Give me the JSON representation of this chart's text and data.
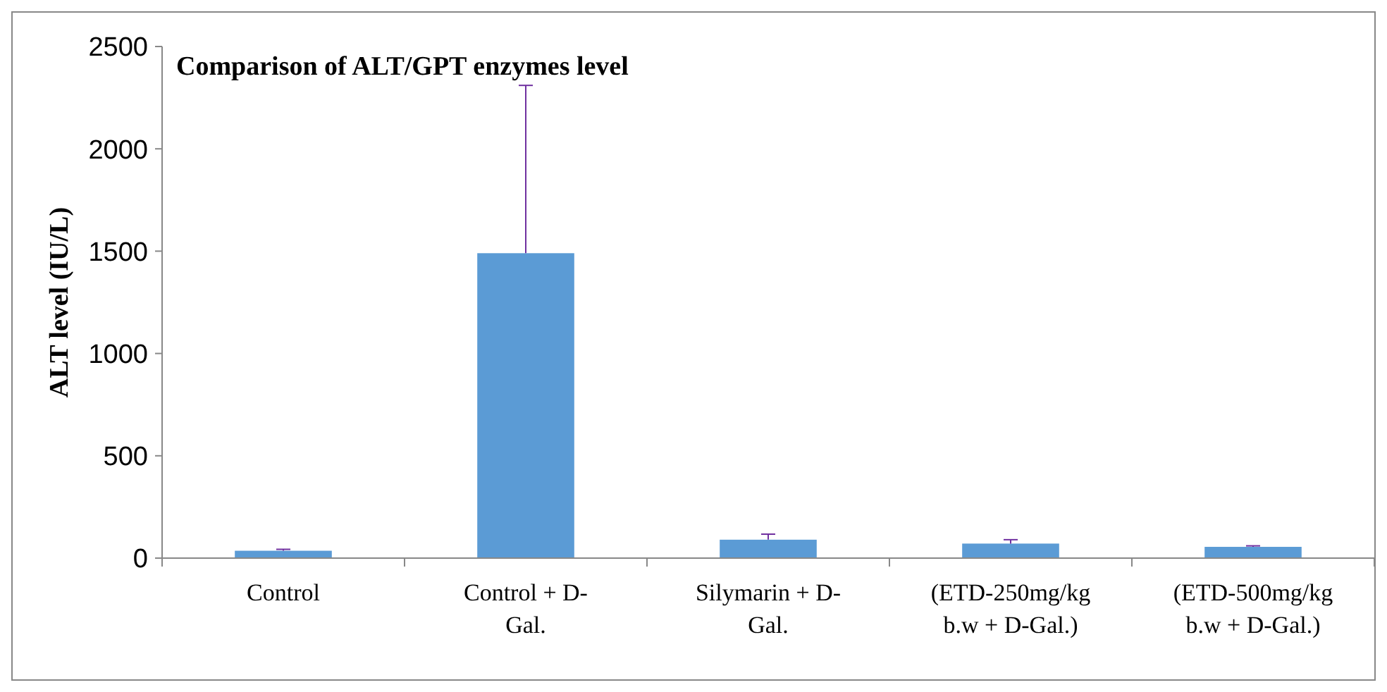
{
  "chart_data": {
    "type": "bar",
    "title": "Comparison of ALT/GPT enzymes level",
    "ylabel": "ALT level (IU/L)",
    "categories": [
      "Control",
      "Control + D-Gal.",
      "Silymarin + D-Gal.",
      "(ETD-250mg/kg b.w + D-Gal.)",
      "(ETD-500mg/kg b.w + D-Gal.)"
    ],
    "values": [
      36,
      1490,
      90,
      71,
      55
    ],
    "errors": [
      7,
      820,
      27,
      19,
      5
    ],
    "color": "#5b9bd5",
    "ylim": [
      0,
      2500
    ],
    "yticks": [
      0,
      500,
      1000,
      1500,
      2000,
      2500
    ],
    "grid": false
  }
}
